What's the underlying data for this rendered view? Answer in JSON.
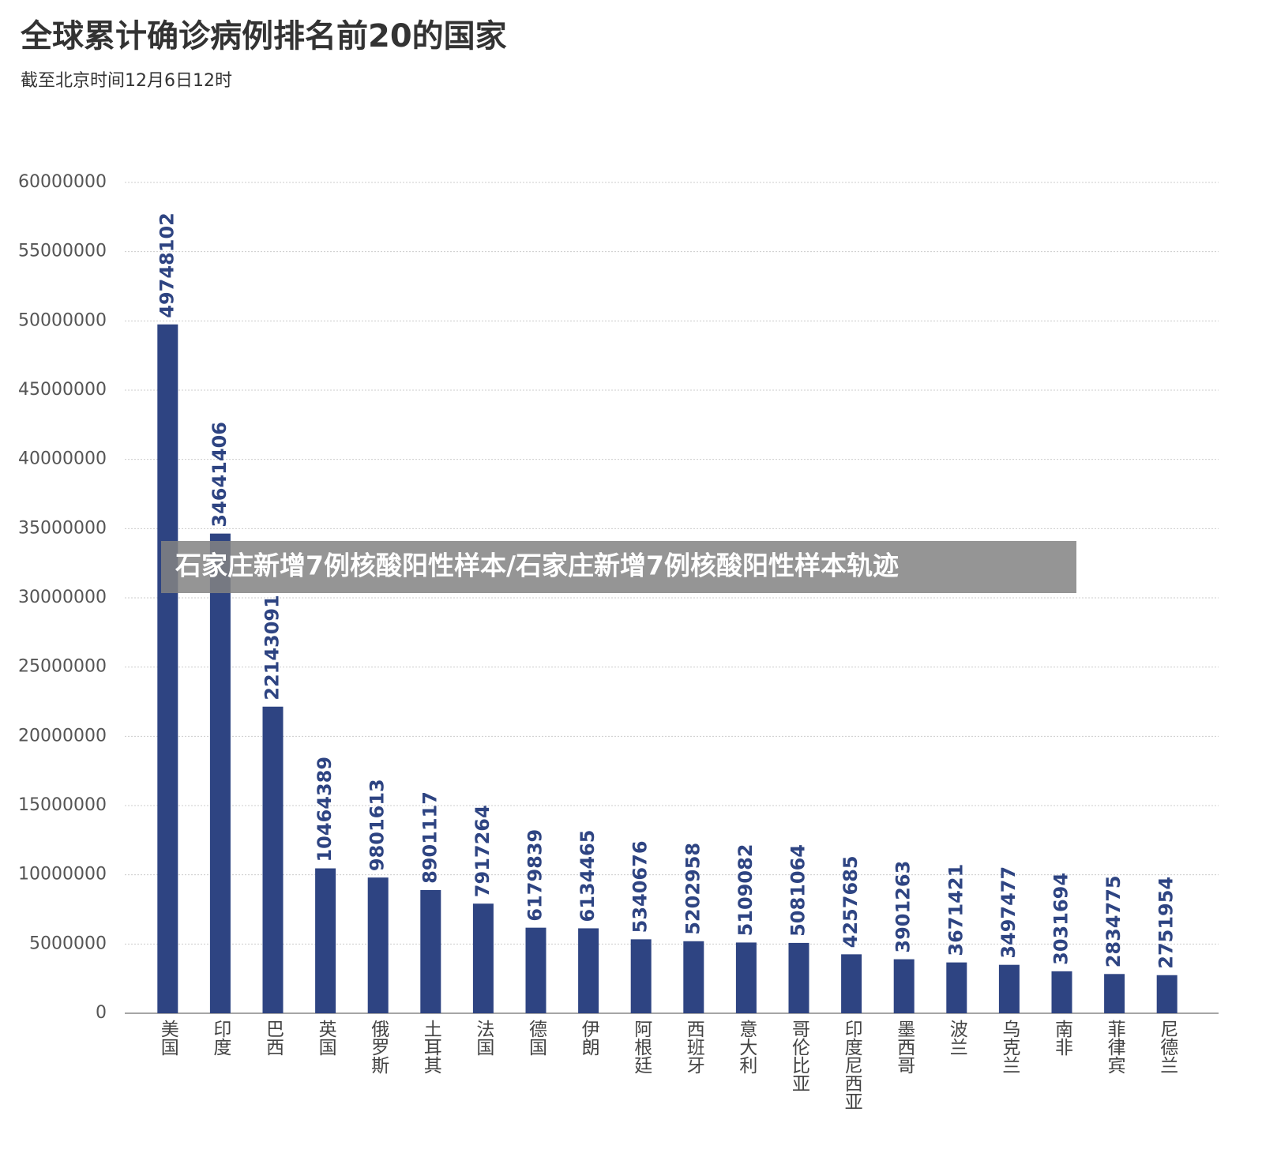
{
  "chart_data": {
    "type": "bar",
    "title": "全球累计确诊病例排名前20的国家",
    "subtitle": "截至北京时间12月6日12时",
    "annotations": [
      "石家庄新增7例核酸阳性样本/石家庄新增7例核酸阳性样本轨迹"
    ],
    "categories": [
      "美国",
      "印度",
      "巴西",
      "英国",
      "俄罗斯",
      "土耳其",
      "法国",
      "德国",
      "伊朗",
      "阿根廷",
      "西班牙",
      "意大利",
      "哥伦比亚",
      "印度尼西亚",
      "墨西哥",
      "波兰",
      "乌克兰",
      "南非",
      "菲律宾",
      "尼德兰"
    ],
    "values": [
      49748102,
      34641406,
      22143091,
      10464389,
      9801613,
      8901117,
      7917264,
      6179839,
      6134465,
      5340676,
      5202958,
      5109082,
      5081064,
      4257685,
      3901263,
      3671421,
      3497477,
      3031694,
      2834775,
      2751954
    ],
    "color": "#2e4482",
    "ylim": [
      0,
      60000000
    ],
    "yticks": [
      0,
      5000000,
      10000000,
      15000000,
      20000000,
      25000000,
      30000000,
      35000000,
      40000000,
      45000000,
      50000000,
      55000000,
      60000000
    ],
    "grid": true
  }
}
